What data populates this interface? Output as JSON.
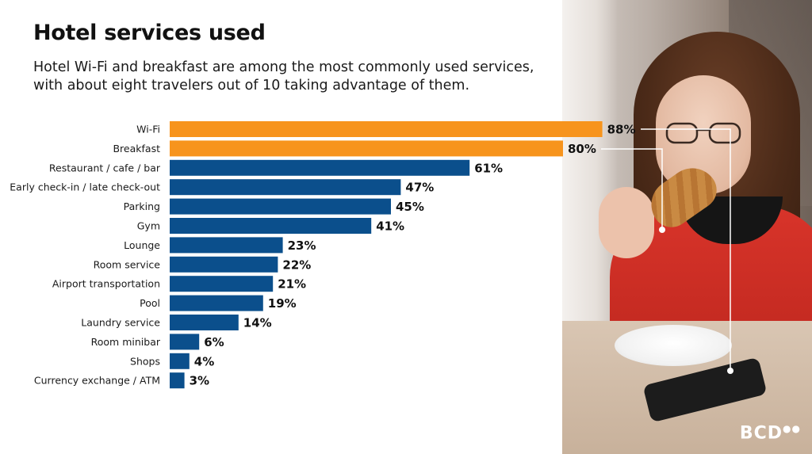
{
  "title": "Hotel services used",
  "subtitle": "Hotel Wi-Fi and breakfast are among the most commonly used services, with about eight travelers out of 10 taking advantage of them.",
  "logo": "BCD",
  "colors": {
    "highlight": "#F7941D",
    "standard": "#0B4F8C",
    "text": "#111111"
  },
  "chart_data": {
    "type": "bar",
    "orientation": "horizontal",
    "categories": [
      "Wi-Fi",
      "Breakfast",
      "Restaurant / cafe / bar",
      "Early check-in / late check-out",
      "Parking",
      "Gym",
      "Lounge",
      "Room service",
      "Airport transportation",
      "Pool",
      "Laundry service",
      "Room minibar",
      "Shops",
      "Currency exchange / ATM"
    ],
    "values": [
      88,
      80,
      61,
      47,
      45,
      41,
      23,
      22,
      21,
      19,
      14,
      6,
      4,
      3
    ],
    "value_labels": [
      "88%",
      "80%",
      "61%",
      "47%",
      "45%",
      "41%",
      "23%",
      "22%",
      "21%",
      "19%",
      "14%",
      "6%",
      "4%",
      "3%"
    ],
    "highlighted": [
      true,
      true,
      false,
      false,
      false,
      false,
      false,
      false,
      false,
      false,
      false,
      false,
      false,
      false
    ],
    "unit": "%",
    "xlim": [
      0,
      100
    ],
    "grid": false,
    "legend": "none",
    "title": "",
    "xlabel": "",
    "ylabel": ""
  }
}
